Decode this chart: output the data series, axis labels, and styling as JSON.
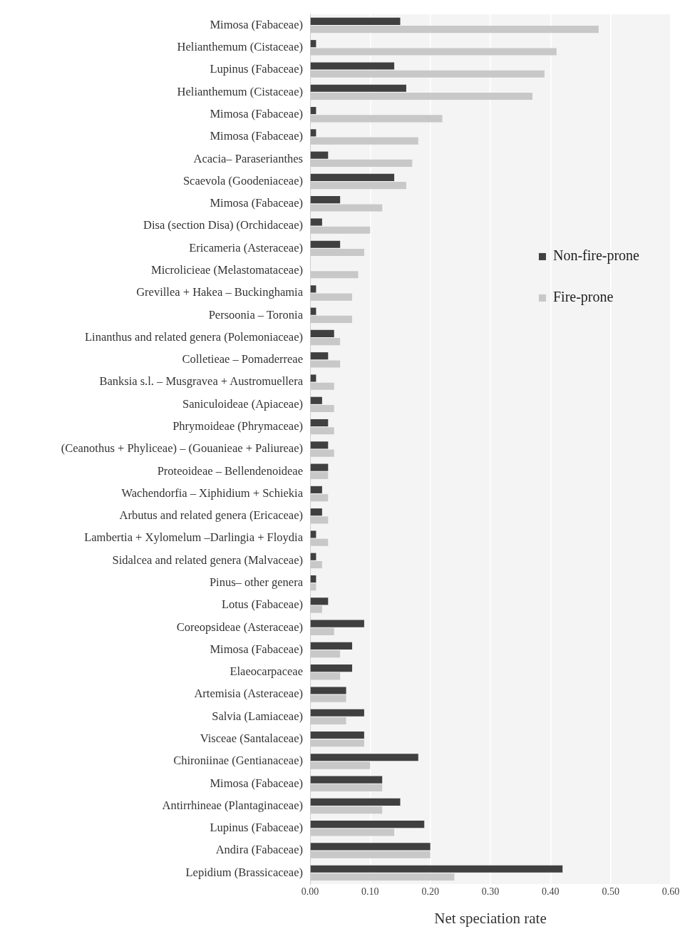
{
  "chart_data": {
    "type": "bar",
    "orientation": "horizontal",
    "xlabel": "Net speciation rate",
    "categories": [
      "Mimosa (Fabaceae)",
      "Helianthemum (Cistaceae)",
      "Lupinus (Fabaceae)",
      "Helianthemum (Cistaceae)",
      "Mimosa (Fabaceae)",
      "Mimosa (Fabaceae)",
      "Acacia– Paraserianthes",
      "Scaevola (Goodeniaceae)",
      "Mimosa (Fabaceae)",
      "Disa (section Disa) (Orchidaceae)",
      "Ericameria (Asteraceae)",
      "Microlicieae (Melastomataceae)",
      "Grevillea + Hakea – Buckinghamia",
      "Persoonia – Toronia",
      "Linanthus and related genera (Polemoniaceae)",
      "Colletieae – Pomaderreae",
      "Banksia s.l. – Musgravea + Austromuellera",
      "Saniculoideae (Apiaceae)",
      "Phrymoideae (Phrymaceae)",
      "(Ceanothus + Phyliceae) – (Gouanieae + Paliureae)",
      "Proteoideae – Bellendenoideae",
      "Wachendorfia – Xiphidium + Schiekia",
      "Arbutus and related genera (Ericaceae)",
      "Lambertia + Xylomelum –Darlingia + Floydia",
      "Sidalcea and related genera (Malvaceae)",
      "Pinus– other genera",
      "Lotus (Fabaceae)",
      "Coreopsideae (Asteraceae)",
      "Mimosa (Fabaceae)",
      "Elaeocarpaceae",
      "Artemisia (Asteraceae)",
      "Salvia (Lamiaceae)",
      "Visceae (Santalaceae)",
      "Chironiinae (Gentianaceae)",
      "Mimosa (Fabaceae)",
      "Antirrhineae (Plantaginaceae)",
      "Lupinus (Fabaceae)",
      "Andira (Fabaceae)",
      "Lepidium (Brassicaceae)"
    ],
    "series": [
      {
        "name": "Non-fire-prone",
        "color": "#404040",
        "values": [
          0.15,
          0.01,
          0.14,
          0.16,
          0.01,
          0.01,
          0.03,
          0.14,
          0.05,
          0.02,
          0.05,
          0,
          0.01,
          0.01,
          0.04,
          0.03,
          0.01,
          0.02,
          0.03,
          0.03,
          0.03,
          0.02,
          0.02,
          0.01,
          0.01,
          0.01,
          0.03,
          0.09,
          0.07,
          0.07,
          0.06,
          0.09,
          0.09,
          0.18,
          0.12,
          0.15,
          0.19,
          0.2,
          0.42
        ]
      },
      {
        "name": "Fire-prone",
        "color": "#c8c8c8",
        "values": [
          0.48,
          0.41,
          0.39,
          0.37,
          0.22,
          0.18,
          0.17,
          0.16,
          0.12,
          0.1,
          0.09,
          0.08,
          0.07,
          0.07,
          0.05,
          0.05,
          0.04,
          0.04,
          0.04,
          0.04,
          0.03,
          0.03,
          0.03,
          0.03,
          0.02,
          0.01,
          0.02,
          0.04,
          0.05,
          0.05,
          0.06,
          0.06,
          0.09,
          0.1,
          0.12,
          0.12,
          0.14,
          0.2,
          0.24
        ]
      }
    ],
    "xlim": [
      0,
      0.6
    ],
    "xticks": [
      {
        "value": 0,
        "label": "0.00"
      },
      {
        "value": 0.1,
        "label": "0.10"
      },
      {
        "value": 0.2,
        "label": "0.20"
      },
      {
        "value": 0.3,
        "label": "0.30"
      },
      {
        "value": 0.4,
        "label": "0.40"
      },
      {
        "value": 0.5,
        "label": "0.50"
      },
      {
        "value": 0.6,
        "label": "0.60"
      }
    ],
    "grid": "x",
    "legend": "right"
  }
}
